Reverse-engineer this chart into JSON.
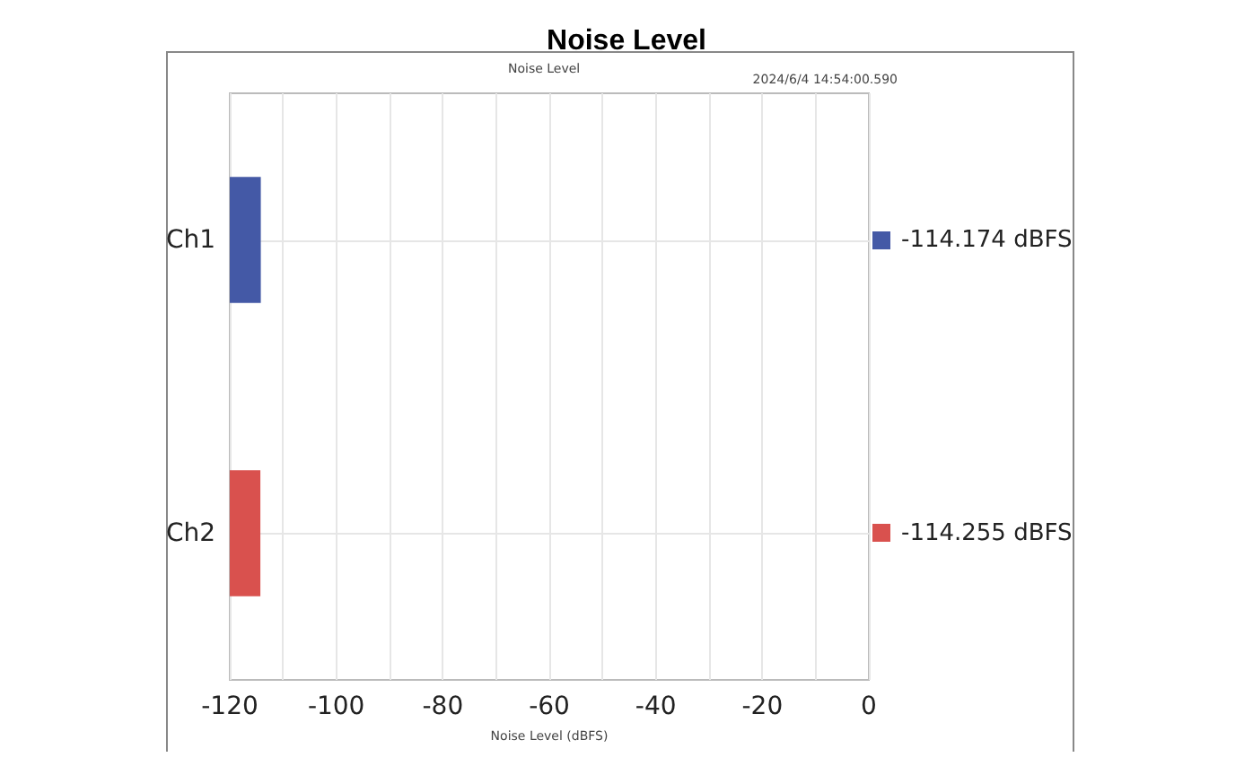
{
  "chart_data": {
    "type": "bar",
    "orientation": "horizontal",
    "title": "Noise Level",
    "subtitle": "Noise Level",
    "annotations": [
      "2024/6/4 14:54:00.590"
    ],
    "xlabel": "Noise Level (dBFS)",
    "categories": [
      "Ch1",
      "Ch2"
    ],
    "base": [
      -120,
      -120
    ],
    "values": [
      5.826,
      5.745
    ],
    "colors": [
      "#4459a6",
      "#d9514e"
    ],
    "value_labels": [
      "-114.174 dBFS",
      "-114.255 dBFS"
    ],
    "xlim": [
      -120,
      0
    ],
    "xticks": [
      -120,
      {
        "value": -110,
        "label": null
      },
      -100,
      {
        "value": -90,
        "label": null
      },
      -80,
      {
        "value": -70,
        "label": null
      },
      -60,
      {
        "value": -50,
        "label": null
      },
      -40,
      {
        "value": -30,
        "label": null
      },
      -20,
      {
        "value": -10,
        "label": null
      },
      0
    ],
    "grid": true
  }
}
